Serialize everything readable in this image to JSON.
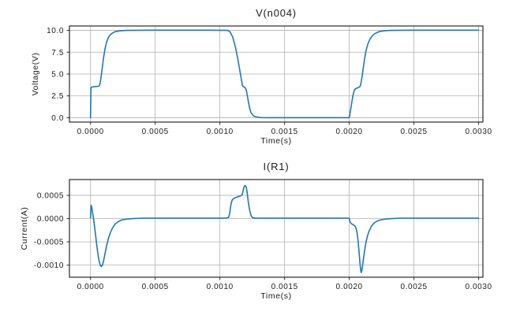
{
  "figure": {
    "background": "#ffffff",
    "line_color": "#1f77b4",
    "grid_color": "#b0b0b0",
    "spine_color": "#2a2a2a",
    "text_color": "#1c1c1c"
  },
  "chart_data": [
    {
      "type": "line",
      "title": "V(n004)",
      "xlabel": "Time(s)",
      "ylabel": "Voltage(V)",
      "grid": true,
      "legend": "none",
      "xlim": [
        -0.000163,
        0.003033
      ],
      "ylim": [
        -0.5,
        10.5
      ],
      "xticks": [
        0.0,
        0.0005,
        0.001,
        0.0015,
        0.002,
        0.0025,
        0.003
      ],
      "xtick_labels": [
        "0.0000",
        "0.0005",
        "0.0010",
        "0.0015",
        "0.0020",
        "0.0025",
        "0.0030"
      ],
      "yticks": [
        0.0,
        2.5,
        5.0,
        7.5,
        10.0
      ],
      "ytick_labels": [
        "0.0",
        "2.5",
        "5.0",
        "7.5",
        "10.0"
      ],
      "series": [
        {
          "name": "V(n004)",
          "points": [
            [
              0,
              0
            ],
            [
              3e-06,
              3.4
            ],
            [
              8e-06,
              3.5
            ],
            [
              3e-05,
              3.55
            ],
            [
              6e-05,
              3.6
            ],
            [
              7e-05,
              3.68
            ],
            [
              7.8e-05,
              4.3
            ],
            [
              8.8e-05,
              5.4
            ],
            [
              0.0001,
              6.8
            ],
            [
              0.000112,
              7.9
            ],
            [
              0.000125,
              8.7
            ],
            [
              0.00014,
              9.25
            ],
            [
              0.00016,
              9.6
            ],
            [
              0.00019,
              9.85
            ],
            [
              0.00023,
              9.95
            ],
            [
              0.00028,
              10.0
            ],
            [
              0.0005,
              10.02
            ],
            [
              0.0009,
              10.02
            ],
            [
              0.00106,
              10.0
            ],
            [
              0.00108,
              9.8
            ],
            [
              0.0011,
              9.2
            ],
            [
              0.00112,
              8.1
            ],
            [
              0.00114,
              6.6
            ],
            [
              0.00116,
              4.9
            ],
            [
              0.001168,
              4.2
            ],
            [
              0.001174,
              3.7
            ],
            [
              0.00118,
              3.55
            ],
            [
              0.00119,
              3.5
            ],
            [
              0.001196,
              3.42
            ],
            [
              0.001204,
              3.15
            ],
            [
              0.00121,
              2.7
            ],
            [
              0.00122,
              1.85
            ],
            [
              0.00123,
              1.1
            ],
            [
              0.00124,
              0.6
            ],
            [
              0.001255,
              0.28
            ],
            [
              0.00127,
              0.13
            ],
            [
              0.00129,
              0.05
            ],
            [
              0.00132,
              0.01
            ],
            [
              0.00137,
              0
            ],
            [
              0.0016,
              0
            ],
            [
              0.002,
              0
            ],
            [
              0.00201,
              0.85
            ],
            [
              0.00202,
              1.8
            ],
            [
              0.00203,
              2.65
            ],
            [
              0.002038,
              3.1
            ],
            [
              0.002046,
              3.3
            ],
            [
              0.00206,
              3.4
            ],
            [
              0.00207,
              3.45
            ],
            [
              0.00208,
              3.52
            ],
            [
              0.002088,
              3.75
            ],
            [
              0.0021,
              4.8
            ],
            [
              0.00211,
              5.9
            ],
            [
              0.00212,
              6.9
            ],
            [
              0.00213,
              7.7
            ],
            [
              0.002145,
              8.5
            ],
            [
              0.00216,
              9.0
            ],
            [
              0.00218,
              9.4
            ],
            [
              0.0022,
              9.65
            ],
            [
              0.00223,
              9.85
            ],
            [
              0.00227,
              9.95
            ],
            [
              0.00232,
              10.0
            ],
            [
              0.0026,
              10.02
            ],
            [
              0.003,
              10.02
            ]
          ]
        }
      ]
    },
    {
      "type": "line",
      "title": "I(R1)",
      "xlabel": "Time(s)",
      "ylabel": "Current(A)",
      "grid": true,
      "legend": "none",
      "xlim": [
        -0.000163,
        0.003033
      ],
      "ylim": [
        -0.00126,
        0.00084
      ],
      "xticks": [
        0.0,
        0.0005,
        0.001,
        0.0015,
        0.002,
        0.0025,
        0.003
      ],
      "xtick_labels": [
        "0.0000",
        "0.0005",
        "0.0010",
        "0.0015",
        "0.0020",
        "0.0025",
        "0.0030"
      ],
      "yticks": [
        0.0005,
        0.0,
        -0.0005,
        -0.001
      ],
      "ytick_labels": [
        "0.0005",
        "0.0000",
        "-0.0005",
        "-0.0010"
      ],
      "series": [
        {
          "name": "I(R1)",
          "points": [
            [
              0,
              2e-05
            ],
            [
              4e-06,
              0.00029
            ],
            [
              1e-05,
              0.00024
            ],
            [
              1.6e-05,
              0.00012
            ],
            [
              2.2e-05,
              2e-05
            ],
            [
              2.8e-05,
              -0.0001
            ],
            [
              3.6e-05,
              -0.00028
            ],
            [
              4.6e-05,
              -0.00052
            ],
            [
              5.6e-05,
              -0.00074
            ],
            [
              6.6e-05,
              -0.00091
            ],
            [
              7.6e-05,
              -0.00101
            ],
            [
              8.4e-05,
              -0.00103
            ],
            [
              9.2e-05,
              -0.001
            ],
            [
              0.0001,
              -0.00092
            ],
            [
              0.00011,
              -0.00078
            ],
            [
              0.000122,
              -0.00061
            ],
            [
              0.000136,
              -0.00045
            ],
            [
              0.000152,
              -0.00031
            ],
            [
              0.00017,
              -0.0002
            ],
            [
              0.00019,
              -0.00012
            ],
            [
              0.00021,
              -7e-05
            ],
            [
              0.00024,
              -3e-05
            ],
            [
              0.00028,
              -1e-05
            ],
            [
              0.00033,
              0
            ],
            [
              0.0004,
              1e-05
            ],
            [
              0.0008,
              1e-05
            ],
            [
              0.00105,
              1e-05
            ],
            [
              0.001068,
              3e-05
            ],
            [
              0.001076,
              0.00012
            ],
            [
              0.001082,
              0.00024
            ],
            [
              0.001088,
              0.00034
            ],
            [
              0.001095,
              0.0004
            ],
            [
              0.0011,
              0.00042
            ],
            [
              0.00112,
              0.00045
            ],
            [
              0.00114,
              0.00047
            ],
            [
              0.00116,
              0.00049
            ],
            [
              0.001172,
              0.00051
            ],
            [
              0.001178,
              0.00058
            ],
            [
              0.001184,
              0.00066
            ],
            [
              0.00119,
              0.0007
            ],
            [
              0.001196,
              0.00071
            ],
            [
              0.001202,
              0.00069
            ],
            [
              0.001208,
              0.00061
            ],
            [
              0.001214,
              0.00048
            ],
            [
              0.00122,
              0.00035
            ],
            [
              0.001228,
              0.00021
            ],
            [
              0.001236,
              0.00011
            ],
            [
              0.001244,
              5e-05
            ],
            [
              0.001254,
              2e-05
            ],
            [
              0.00127,
              1e-05
            ],
            [
              0.0013,
              1e-05
            ],
            [
              0.0016,
              1e-05
            ],
            [
              0.002,
              1e-05
            ],
            [
              0.002002,
              -3e-05
            ],
            [
              0.002008,
              -8e-05
            ],
            [
              0.002016,
              -0.00011
            ],
            [
              0.00203,
              -0.00013
            ],
            [
              0.002044,
              -0.00016
            ],
            [
              0.002052,
              -0.0002
            ],
            [
              0.00206,
              -0.0003
            ],
            [
              0.002068,
              -0.00048
            ],
            [
              0.002076,
              -0.00072
            ],
            [
              0.002082,
              -0.00094
            ],
            [
              0.002088,
              -0.0011
            ],
            [
              0.002092,
              -0.00116
            ],
            [
              0.002096,
              -0.00113
            ],
            [
              0.002102,
              -0.00103
            ],
            [
              0.00211,
              -0.00086
            ],
            [
              0.00212,
              -0.00066
            ],
            [
              0.00213,
              -0.0005
            ],
            [
              0.002142,
              -0.00036
            ],
            [
              0.002156,
              -0.00025
            ],
            [
              0.002172,
              -0.00016
            ],
            [
              0.00219,
              -0.0001
            ],
            [
              0.00221,
              -6e-05
            ],
            [
              0.00224,
              -3e-05
            ],
            [
              0.00228,
              -1e-05
            ],
            [
              0.00233,
              0
            ],
            [
              0.0024,
              1e-05
            ],
            [
              0.003,
              1e-05
            ]
          ]
        }
      ]
    }
  ]
}
